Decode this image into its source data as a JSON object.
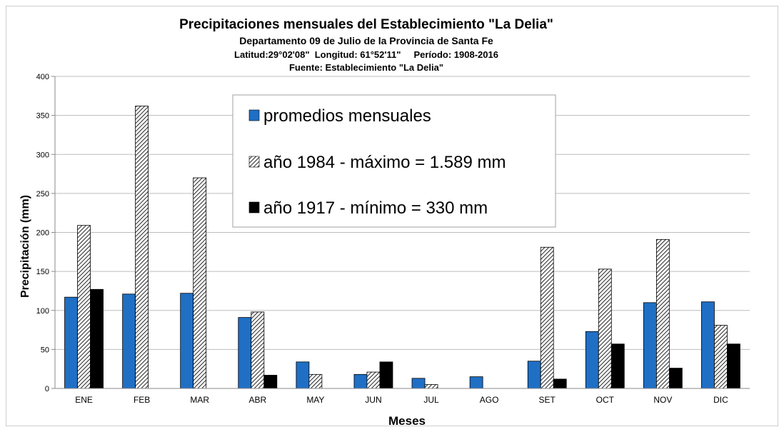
{
  "chart_data": {
    "type": "bar",
    "title": "Precipitaciones mensuales del Establecimiento \"La Delia\"",
    "subtitle_lines": [
      "Departamento 09 de Julio de la Provincia de Santa Fe",
      "Latitud:29°02'08\"  Longitud: 61°52'11\"     Período: 1908-2016",
      "Fuente: Establecimiento \"La Delia\""
    ],
    "xlabel": "Meses",
    "ylabel": "Precipitación (mm)",
    "ylim": [
      0,
      400
    ],
    "yticks": [
      0,
      50,
      100,
      150,
      200,
      250,
      300,
      350,
      400
    ],
    "grid": true,
    "legend_position": "top-center",
    "categories": [
      "ENE",
      "FEB",
      "MAR",
      "ABR",
      "MAY",
      "JUN",
      "JUL",
      "AGO",
      "SET",
      "OCT",
      "NOV",
      "DIC"
    ],
    "series": [
      {
        "name": "promedios mensuales",
        "style": "solid",
        "color": "#1f6fc5",
        "values": [
          117,
          121,
          122,
          91,
          34,
          18,
          13,
          15,
          35,
          73,
          110,
          111
        ]
      },
      {
        "name": "año 1984 - máximo = 1.589 mm",
        "style": "hatched",
        "color": "#000000",
        "values": [
          209,
          362,
          270,
          98,
          18,
          21,
          5,
          0,
          181,
          153,
          191,
          81
        ]
      },
      {
        "name": "año 1917 - mínimo = 330 mm",
        "style": "solid",
        "color": "#000000",
        "values": [
          127,
          0,
          0,
          17,
          0,
          34,
          0,
          0,
          12,
          57,
          26,
          57
        ]
      }
    ]
  }
}
